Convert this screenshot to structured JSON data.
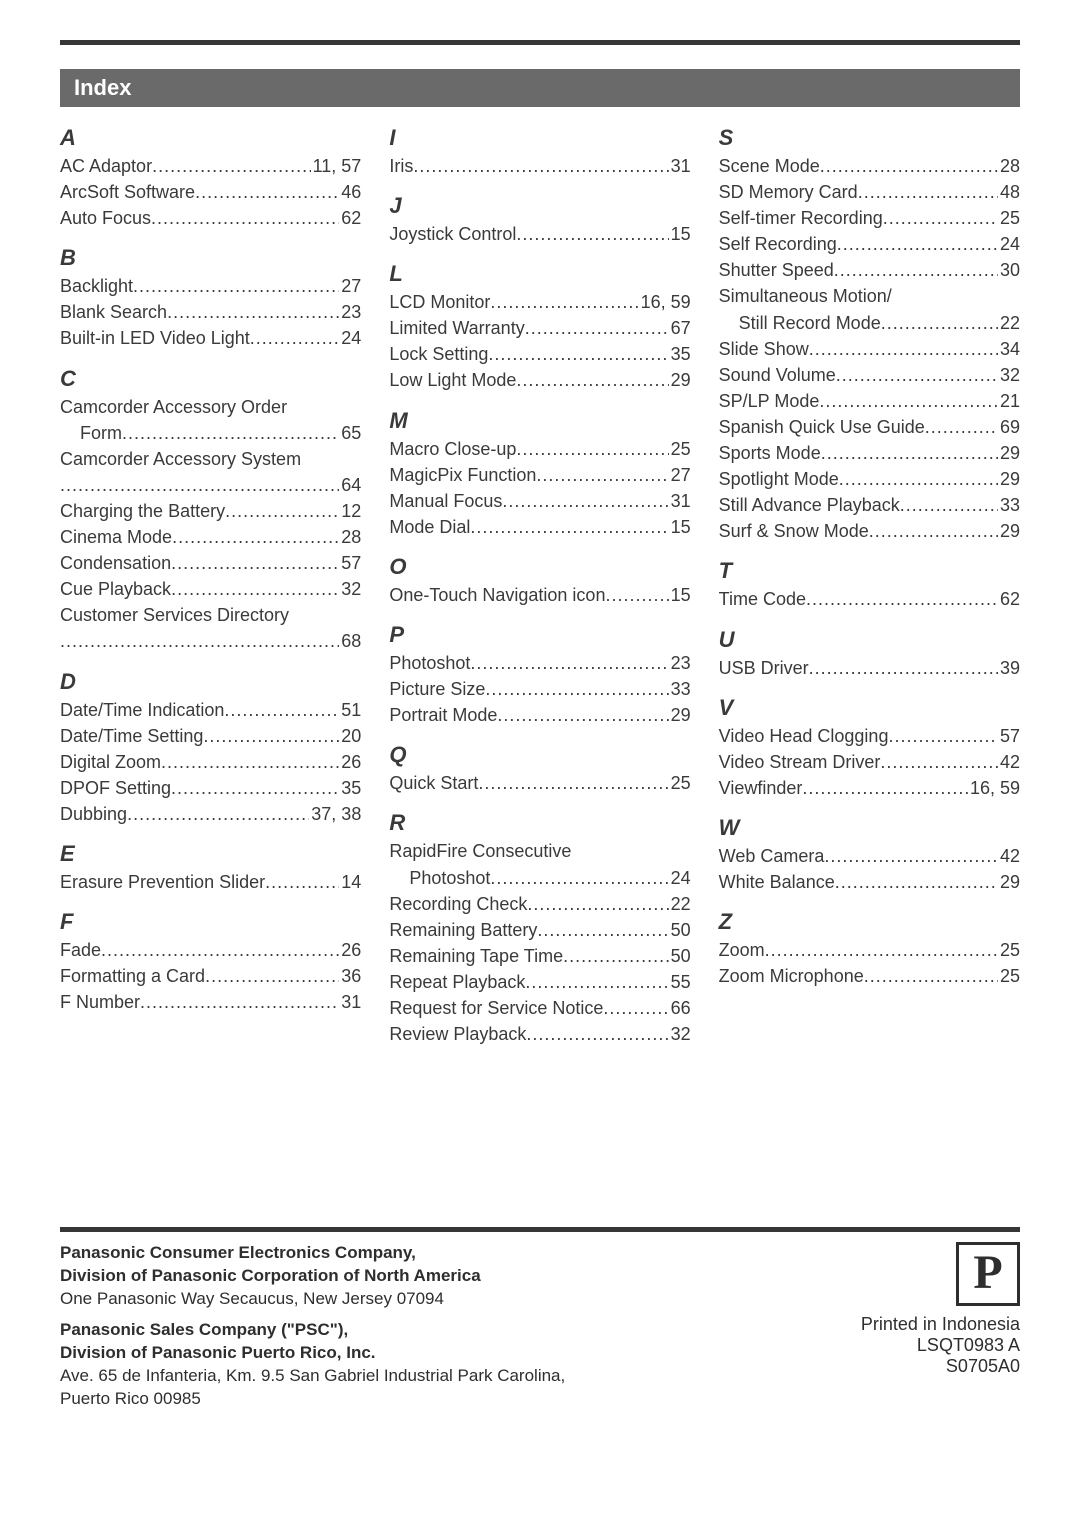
{
  "title": "Index",
  "logo_letter": "P",
  "columns": [
    [
      {
        "letter": "A",
        "entries": [
          {
            "label": "AC Adaptor",
            "pages": "11, 57"
          },
          {
            "label": "ArcSoft Software",
            "pages": "46"
          },
          {
            "label": "Auto Focus",
            "pages": "62"
          }
        ]
      },
      {
        "letter": "B",
        "entries": [
          {
            "label": "Backlight",
            "pages": "27"
          },
          {
            "label": "Blank Search",
            "pages": "23"
          },
          {
            "label": "Built-in LED Video Light",
            "pages": "24"
          }
        ]
      },
      {
        "letter": "C",
        "entries": [
          {
            "label": "Camcorder Accessory Order",
            "nowrap": true
          },
          {
            "label": "Form",
            "pages": "65",
            "indent": true
          },
          {
            "label": "Camcorder Accessory System",
            "nowrap": true
          },
          {
            "label": "",
            "pages": "64"
          },
          {
            "label": "Charging the Battery",
            "pages": "12"
          },
          {
            "label": "Cinema Mode",
            "pages": "28"
          },
          {
            "label": "Condensation",
            "pages": "57"
          },
          {
            "label": "Cue Playback",
            "pages": "32"
          },
          {
            "label": "Customer Services Directory",
            "nowrap": true
          },
          {
            "label": "",
            "pages": "68"
          }
        ]
      },
      {
        "letter": "D",
        "entries": [
          {
            "label": "Date/Time Indication",
            "pages": "51"
          },
          {
            "label": "Date/Time Setting",
            "pages": "20"
          },
          {
            "label": "Digital Zoom",
            "pages": "26"
          },
          {
            "label": "DPOF Setting",
            "pages": "35"
          },
          {
            "label": "Dubbing",
            "pages": "37, 38"
          }
        ]
      },
      {
        "letter": "E",
        "entries": [
          {
            "label": "Erasure Prevention Slider",
            "pages": "14"
          }
        ]
      },
      {
        "letter": "F",
        "entries": [
          {
            "label": "Fade",
            "pages": "26"
          },
          {
            "label": "Formatting a Card",
            "pages": "36"
          },
          {
            "label": "F Number",
            "pages": "31"
          }
        ]
      }
    ],
    [
      {
        "letter": "I",
        "entries": [
          {
            "label": "Iris",
            "pages": "31"
          }
        ]
      },
      {
        "letter": "J",
        "entries": [
          {
            "label": "Joystick Control",
            "pages": "15"
          }
        ]
      },
      {
        "letter": "L",
        "entries": [
          {
            "label": "LCD Monitor",
            "pages": "16, 59"
          },
          {
            "label": "Limited Warranty",
            "pages": "67"
          },
          {
            "label": "Lock Setting",
            "pages": "35"
          },
          {
            "label": "Low Light Mode",
            "pages": "29"
          }
        ]
      },
      {
        "letter": "M",
        "entries": [
          {
            "label": "Macro Close-up",
            "pages": "25"
          },
          {
            "label": "MagicPix Function",
            "pages": "27"
          },
          {
            "label": "Manual Focus",
            "pages": "31"
          },
          {
            "label": "Mode Dial",
            "pages": "15"
          }
        ]
      },
      {
        "letter": "O",
        "entries": [
          {
            "label": "One-Touch Navigation icon",
            "pages": "15"
          }
        ]
      },
      {
        "letter": "P",
        "entries": [
          {
            "label": "Photoshot",
            "pages": "23"
          },
          {
            "label": "Picture Size",
            "pages": "33"
          },
          {
            "label": "Portrait Mode",
            "pages": "29"
          }
        ]
      },
      {
        "letter": "Q",
        "entries": [
          {
            "label": "Quick Start",
            "pages": "25"
          }
        ]
      },
      {
        "letter": "R",
        "entries": [
          {
            "label": "RapidFire Consecutive",
            "nowrap": true
          },
          {
            "label": "Photoshot",
            "pages": "24",
            "indent": true
          },
          {
            "label": "Recording Check",
            "pages": "22"
          },
          {
            "label": "Remaining Battery",
            "pages": "50"
          },
          {
            "label": "Remaining Tape Time",
            "pages": "50"
          },
          {
            "label": "Repeat Playback",
            "pages": "55"
          },
          {
            "label": "Request for Service Notice",
            "pages": "66"
          },
          {
            "label": "Review Playback",
            "pages": "32"
          }
        ]
      }
    ],
    [
      {
        "letter": "S",
        "entries": [
          {
            "label": "Scene Mode",
            "pages": "28"
          },
          {
            "label": "SD Memory Card",
            "pages": "48"
          },
          {
            "label": "Self-timer Recording",
            "pages": "25"
          },
          {
            "label": "Self Recording",
            "pages": "24"
          },
          {
            "label": "Shutter Speed",
            "pages": "30"
          },
          {
            "label": "Simultaneous Motion/",
            "nowrap": true
          },
          {
            "label": "Still Record Mode",
            "pages": "22",
            "indent": true
          },
          {
            "label": "Slide Show",
            "pages": "34"
          },
          {
            "label": "Sound Volume",
            "pages": "32"
          },
          {
            "label": "SP/LP Mode",
            "pages": "21"
          },
          {
            "label": "Spanish Quick Use Guide",
            "pages": "69"
          },
          {
            "label": "Sports Mode",
            "pages": "29"
          },
          {
            "label": "Spotlight Mode",
            "pages": "29"
          },
          {
            "label": "Still Advance Playback",
            "pages": "33"
          },
          {
            "label": "Surf & Snow Mode",
            "pages": "29"
          }
        ]
      },
      {
        "letter": "T",
        "entries": [
          {
            "label": "Time Code",
            "pages": "62"
          }
        ]
      },
      {
        "letter": "U",
        "entries": [
          {
            "label": "USB Driver",
            "pages": "39"
          }
        ]
      },
      {
        "letter": "V",
        "entries": [
          {
            "label": "Video Head Clogging",
            "pages": "57"
          },
          {
            "label": "Video Stream Driver",
            "pages": "42"
          },
          {
            "label": "Viewfinder",
            "pages": "16, 59"
          }
        ]
      },
      {
        "letter": "W",
        "entries": [
          {
            "label": "Web Camera",
            "pages": "42"
          },
          {
            "label": "White Balance",
            "pages": "29"
          }
        ]
      },
      {
        "letter": "Z",
        "entries": [
          {
            "label": "Zoom",
            "pages": "25"
          },
          {
            "label": "Zoom Microphone",
            "pages": "25"
          }
        ]
      }
    ]
  ],
  "footer": {
    "left": [
      {
        "bold": "Panasonic Consumer Electronics Company,"
      },
      {
        "bold": "Division of Panasonic Corporation of North America"
      },
      {
        "text": "One Panasonic Way Secaucus, New Jersey 07094"
      },
      {
        "spacer": true
      },
      {
        "bold": "Panasonic Sales Company (\"PSC\"),"
      },
      {
        "bold": "Division of Panasonic Puerto Rico, Inc."
      },
      {
        "text": "Ave. 65 de Infanteria, Km. 9.5 San Gabriel Industrial Park Carolina,"
      },
      {
        "text": "Puerto Rico 00985"
      }
    ],
    "right": [
      "Printed in Indonesia",
      "LSQT0983 A",
      "S0705A0"
    ]
  }
}
